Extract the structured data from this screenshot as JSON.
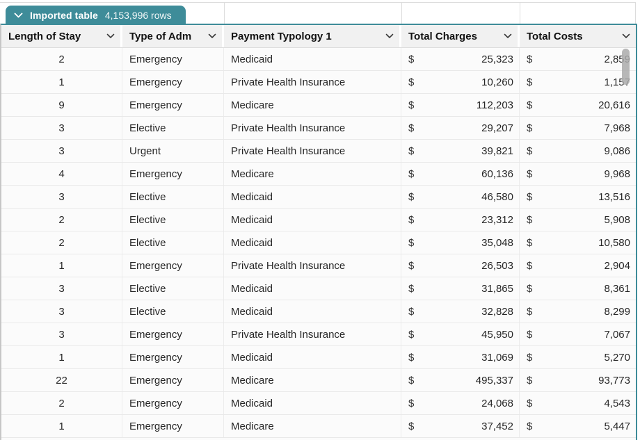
{
  "tab": {
    "title": "Imported table",
    "row_count": "4,153,996 rows"
  },
  "table": {
    "currency_symbol": "$",
    "columns": [
      {
        "label": "Length of Stay",
        "align": "center"
      },
      {
        "label": "Type of Adm",
        "align": "left"
      },
      {
        "label": "Payment Typology 1",
        "align": "left"
      },
      {
        "label": "Total Charges",
        "align": "money"
      },
      {
        "label": "Total Costs",
        "align": "money"
      }
    ],
    "rows": [
      [
        "2",
        "Emergency",
        "Medicaid",
        "25,323",
        "2,859"
      ],
      [
        "1",
        "Emergency",
        "Private Health Insurance",
        "10,260",
        "1,157"
      ],
      [
        "9",
        "Emergency",
        "Medicare",
        "112,203",
        "20,616"
      ],
      [
        "3",
        "Elective",
        "Private Health Insurance",
        "29,207",
        "7,968"
      ],
      [
        "3",
        "Urgent",
        "Private Health Insurance",
        "39,821",
        "9,086"
      ],
      [
        "4",
        "Emergency",
        "Medicare",
        "60,136",
        "9,968"
      ],
      [
        "3",
        "Elective",
        "Medicaid",
        "46,580",
        "13,516"
      ],
      [
        "2",
        "Elective",
        "Medicaid",
        "23,312",
        "5,908"
      ],
      [
        "2",
        "Elective",
        "Medicaid",
        "35,048",
        "10,580"
      ],
      [
        "1",
        "Emergency",
        "Private Health Insurance",
        "26,503",
        "2,904"
      ],
      [
        "3",
        "Elective",
        "Medicaid",
        "31,865",
        "8,361"
      ],
      [
        "3",
        "Elective",
        "Medicaid",
        "32,828",
        "8,299"
      ],
      [
        "3",
        "Emergency",
        "Private Health Insurance",
        "45,950",
        "7,067"
      ],
      [
        "1",
        "Emergency",
        "Medicaid",
        "31,069",
        "5,270"
      ],
      [
        "22",
        "Emergency",
        "Medicare",
        "495,337",
        "93,773"
      ],
      [
        "2",
        "Emergency",
        "Medicaid",
        "24,068",
        "4,543"
      ],
      [
        "1",
        "Emergency",
        "Medicare",
        "37,452",
        "5,447"
      ]
    ]
  },
  "colors": {
    "accent_teal": "#3e8c99",
    "header_bg": "#f1f1f1",
    "grid_line": "#e9e9e9"
  }
}
